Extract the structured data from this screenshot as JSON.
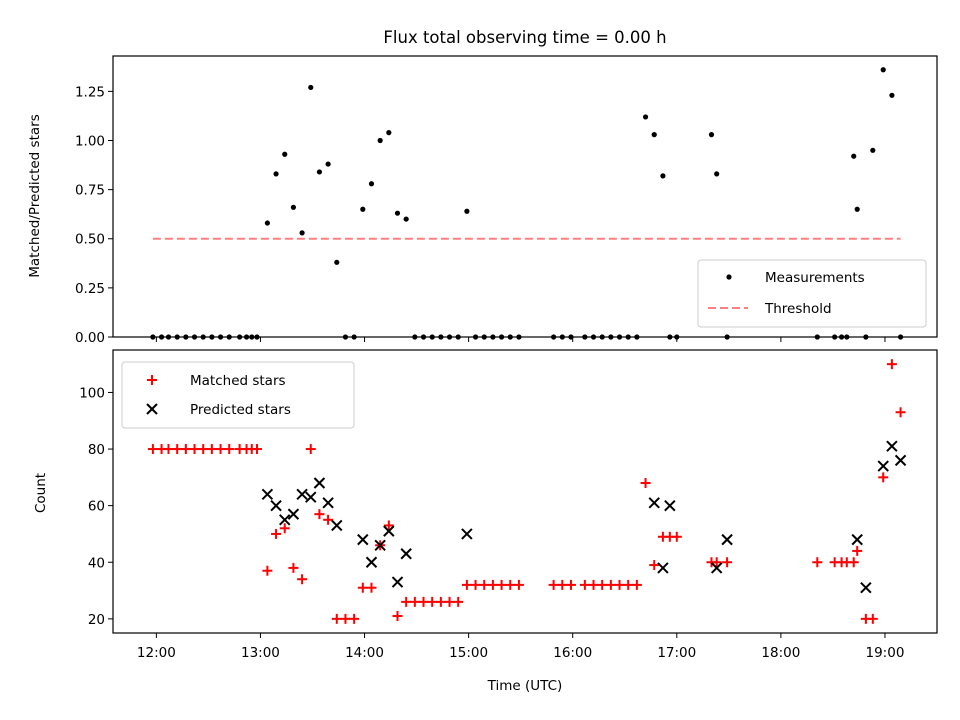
{
  "chart_data": [
    {
      "type": "scatter",
      "title": "Flux total observing time = 0.00 h",
      "xlabel": "",
      "ylabel": "Matched/Predicted stars",
      "xlim": [
        "11:35",
        "19:30"
      ],
      "ylim": [
        0,
        1.43
      ],
      "yticks": [
        "0.00",
        "0.25",
        "0.50",
        "0.75",
        "1.00",
        "1.25"
      ],
      "legend_position": "lower-right",
      "series": [
        {
          "name": "Measurements",
          "marker": "dot",
          "color": "#000000",
          "x": [
            "11:58",
            "12:03",
            "12:07",
            "12:12",
            "12:17",
            "12:22",
            "12:27",
            "12:32",
            "12:37",
            "12:42",
            "12:48",
            "12:52",
            "12:55",
            "12:58",
            "13:04",
            "13:09",
            "13:14",
            "13:19",
            "13:24",
            "13:29",
            "13:34",
            "13:39",
            "13:44",
            "13:49",
            "13:54",
            "13:59",
            "14:04",
            "14:09",
            "14:14",
            "14:19",
            "14:24",
            "14:29",
            "14:34",
            "14:39",
            "14:44",
            "14:49",
            "14:54",
            "14:59",
            "15:04",
            "15:09",
            "15:14",
            "15:19",
            "15:24",
            "15:29",
            "15:49",
            "15:54",
            "15:59",
            "16:07",
            "16:12",
            "16:17",
            "16:22",
            "16:27",
            "16:32",
            "16:37",
            "16:42",
            "16:47",
            "16:52",
            "16:56",
            "17:00",
            "17:20",
            "17:23",
            "17:29",
            "18:21",
            "18:31",
            "18:35",
            "18:38",
            "18:42",
            "18:44",
            "18:49",
            "18:53",
            "18:59",
            "19:04",
            "19:09"
          ],
          "y": [
            0,
            0,
            0,
            0,
            0,
            0,
            0,
            0,
            0,
            0,
            0,
            0,
            0,
            0,
            0.58,
            0.83,
            0.93,
            0.66,
            0.53,
            1.27,
            0.84,
            0.88,
            0.38,
            0,
            0,
            0.65,
            0.78,
            1.0,
            1.04,
            0.63,
            0.6,
            0,
            0,
            0,
            0,
            0,
            0,
            0.64,
            0,
            0,
            0,
            0,
            0,
            0,
            0,
            0,
            0,
            0,
            0,
            0,
            0,
            0,
            0,
            0,
            1.12,
            1.03,
            0.82,
            0,
            0,
            1.03,
            0.83,
            0,
            0,
            0,
            0,
            0,
            0.92,
            0.65,
            0,
            0.95,
            1.36,
            1.23,
            0
          ]
        },
        {
          "name": "Threshold",
          "marker": "dashed-line",
          "color": "#ff8080",
          "x": [
            "11:58",
            "19:09"
          ],
          "y": [
            0.5,
            0.5
          ]
        }
      ]
    },
    {
      "type": "scatter",
      "title": "",
      "xlabel": "Time (UTC)",
      "ylabel": "Count",
      "xlim": [
        "11:35",
        "19:30"
      ],
      "ylim": [
        15,
        115
      ],
      "xticks": [
        "12:00",
        "13:00",
        "14:00",
        "15:00",
        "16:00",
        "17:00",
        "18:00",
        "19:00"
      ],
      "yticks": [
        "20",
        "40",
        "60",
        "80",
        "100"
      ],
      "legend_position": "upper-left",
      "series": [
        {
          "name": "Matched stars",
          "marker": "plus",
          "color": "#ff0000",
          "x": [
            "11:58",
            "12:03",
            "12:07",
            "12:12",
            "12:17",
            "12:22",
            "12:27",
            "12:32",
            "12:37",
            "12:42",
            "12:48",
            "12:52",
            "12:55",
            "12:58",
            "13:04",
            "13:09",
            "13:14",
            "13:19",
            "13:24",
            "13:29",
            "13:34",
            "13:39",
            "13:44",
            "13:49",
            "13:54",
            "13:59",
            "14:04",
            "14:09",
            "14:14",
            "14:19",
            "14:24",
            "14:29",
            "14:34",
            "14:39",
            "14:44",
            "14:49",
            "14:54",
            "14:59",
            "15:04",
            "15:09",
            "15:14",
            "15:19",
            "15:24",
            "15:29",
            "15:49",
            "15:54",
            "15:59",
            "16:07",
            "16:12",
            "16:17",
            "16:22",
            "16:27",
            "16:32",
            "16:37",
            "16:42",
            "16:47",
            "16:52",
            "16:56",
            "17:00",
            "17:20",
            "17:23",
            "17:29",
            "18:21",
            "18:31",
            "18:35",
            "18:38",
            "18:42",
            "18:44",
            "18:49",
            "18:53",
            "18:59",
            "19:04",
            "19:09"
          ],
          "y": [
            80,
            80,
            80,
            80,
            80,
            80,
            80,
            80,
            80,
            80,
            80,
            80,
            80,
            80,
            37,
            50,
            52,
            38,
            34,
            80,
            57,
            55,
            20,
            20,
            20,
            31,
            31,
            46,
            53,
            21,
            26,
            26,
            26,
            26,
            26,
            26,
            26,
            32,
            32,
            32,
            32,
            32,
            32,
            32,
            32,
            32,
            32,
            32,
            32,
            32,
            32,
            32,
            32,
            32,
            68,
            39,
            49,
            49,
            49,
            40,
            40,
            40,
            40,
            40,
            40,
            40,
            40,
            44,
            20,
            20,
            70,
            110,
            93
          ]
        },
        {
          "name": "Predicted stars",
          "marker": "x",
          "color": "#000000",
          "x": [
            "13:04",
            "13:09",
            "13:14",
            "13:19",
            "13:24",
            "13:29",
            "13:34",
            "13:39",
            "13:44",
            "13:59",
            "14:04",
            "14:09",
            "14:14",
            "14:19",
            "14:24",
            "14:59",
            "16:47",
            "16:52",
            "16:56",
            "17:23",
            "17:29",
            "18:44",
            "18:49",
            "18:59",
            "19:04",
            "19:09"
          ],
          "y": [
            64,
            60,
            55,
            57,
            64,
            63,
            68,
            61,
            53,
            48,
            40,
            46,
            51,
            33,
            43,
            50,
            61,
            38,
            60,
            38,
            48,
            48,
            31,
            74,
            81,
            76
          ]
        }
      ]
    }
  ]
}
